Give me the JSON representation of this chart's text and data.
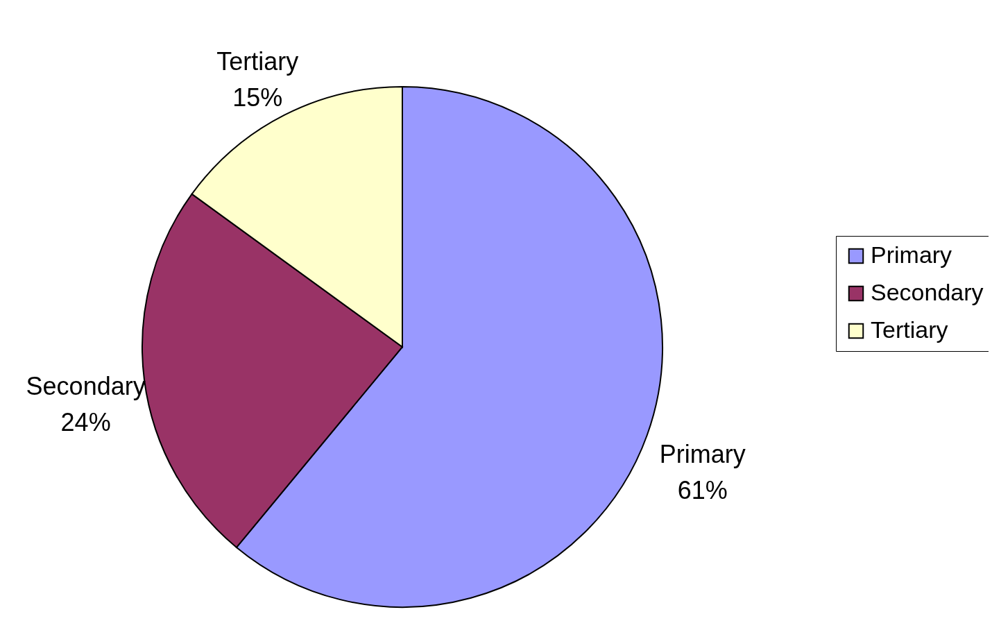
{
  "chart_data": {
    "type": "pie",
    "categories": [
      "Primary",
      "Secondary",
      "Tertiary"
    ],
    "values": [
      61,
      24,
      15
    ],
    "value_labels": [
      "61%",
      "24%",
      "15%"
    ],
    "colors": [
      "#9999ff",
      "#993366",
      "#ffffcc"
    ],
    "legend": "right"
  }
}
